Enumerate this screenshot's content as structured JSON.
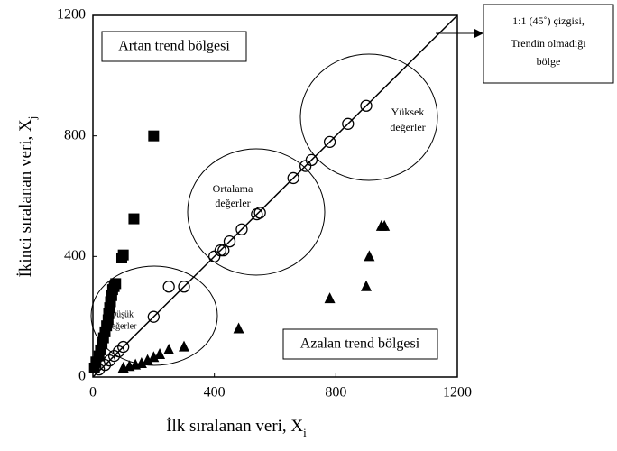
{
  "chart_data": {
    "type": "scatter",
    "x_label": {
      "text": "İlk sıralanan veri, X",
      "subscript": "i"
    },
    "y_label": {
      "text": "İkinci sıralanan veri, X",
      "subscript": "j"
    },
    "xlim": [
      0,
      1200
    ],
    "ylim": [
      0,
      1200
    ],
    "xticks": [
      0,
      400,
      800,
      1200
    ],
    "yticks": [
      0,
      400,
      800,
      1200
    ],
    "grid": false,
    "series": [
      {
        "marker": "circle",
        "color": "#000000",
        "x": [
          20,
          40,
          55,
          70,
          85,
          100,
          200,
          250,
          300,
          430,
          400,
          420,
          450,
          490,
          540,
          550,
          660,
          700,
          720,
          780,
          840,
          900
        ],
        "values": [
          25,
          40,
          55,
          70,
          85,
          100,
          200,
          300,
          300,
          420,
          400,
          420,
          450,
          490,
          540,
          545,
          660,
          700,
          720,
          780,
          840,
          900
        ]
      },
      {
        "marker": "square",
        "color": "#000000",
        "x": [
          5,
          10,
          20,
          25,
          30,
          35,
          40,
          45,
          50,
          52,
          55,
          58,
          62,
          65,
          70,
          75,
          95,
          100,
          135,
          200
        ],
        "values": [
          30,
          50,
          70,
          90,
          110,
          130,
          150,
          170,
          190,
          210,
          230,
          250,
          270,
          290,
          300,
          310,
          395,
          405,
          525,
          800
        ]
      },
      {
        "marker": "triangle",
        "color": "#000000",
        "x": [
          100,
          120,
          140,
          160,
          180,
          200,
          220,
          250,
          300,
          480,
          780,
          900,
          910,
          950,
          960
        ],
        "values": [
          30,
          35,
          40,
          45,
          55,
          65,
          75,
          90,
          100,
          160,
          260,
          300,
          400,
          500,
          500
        ]
      }
    ],
    "annotations": {
      "increasing_region": "Artan trend bölgesi",
      "decreasing_region": "Azalan trend bölgesi",
      "no_trend_line": [
        "1:1 (45˚) çizgisi,",
        "Trendin olmadığı",
        "bölge"
      ],
      "low_values": [
        "Düşük",
        "değerler"
      ],
      "mid_values": [
        "Ortalama",
        "değerler"
      ],
      "high_values": [
        "Yüksek",
        "değerler"
      ]
    }
  }
}
